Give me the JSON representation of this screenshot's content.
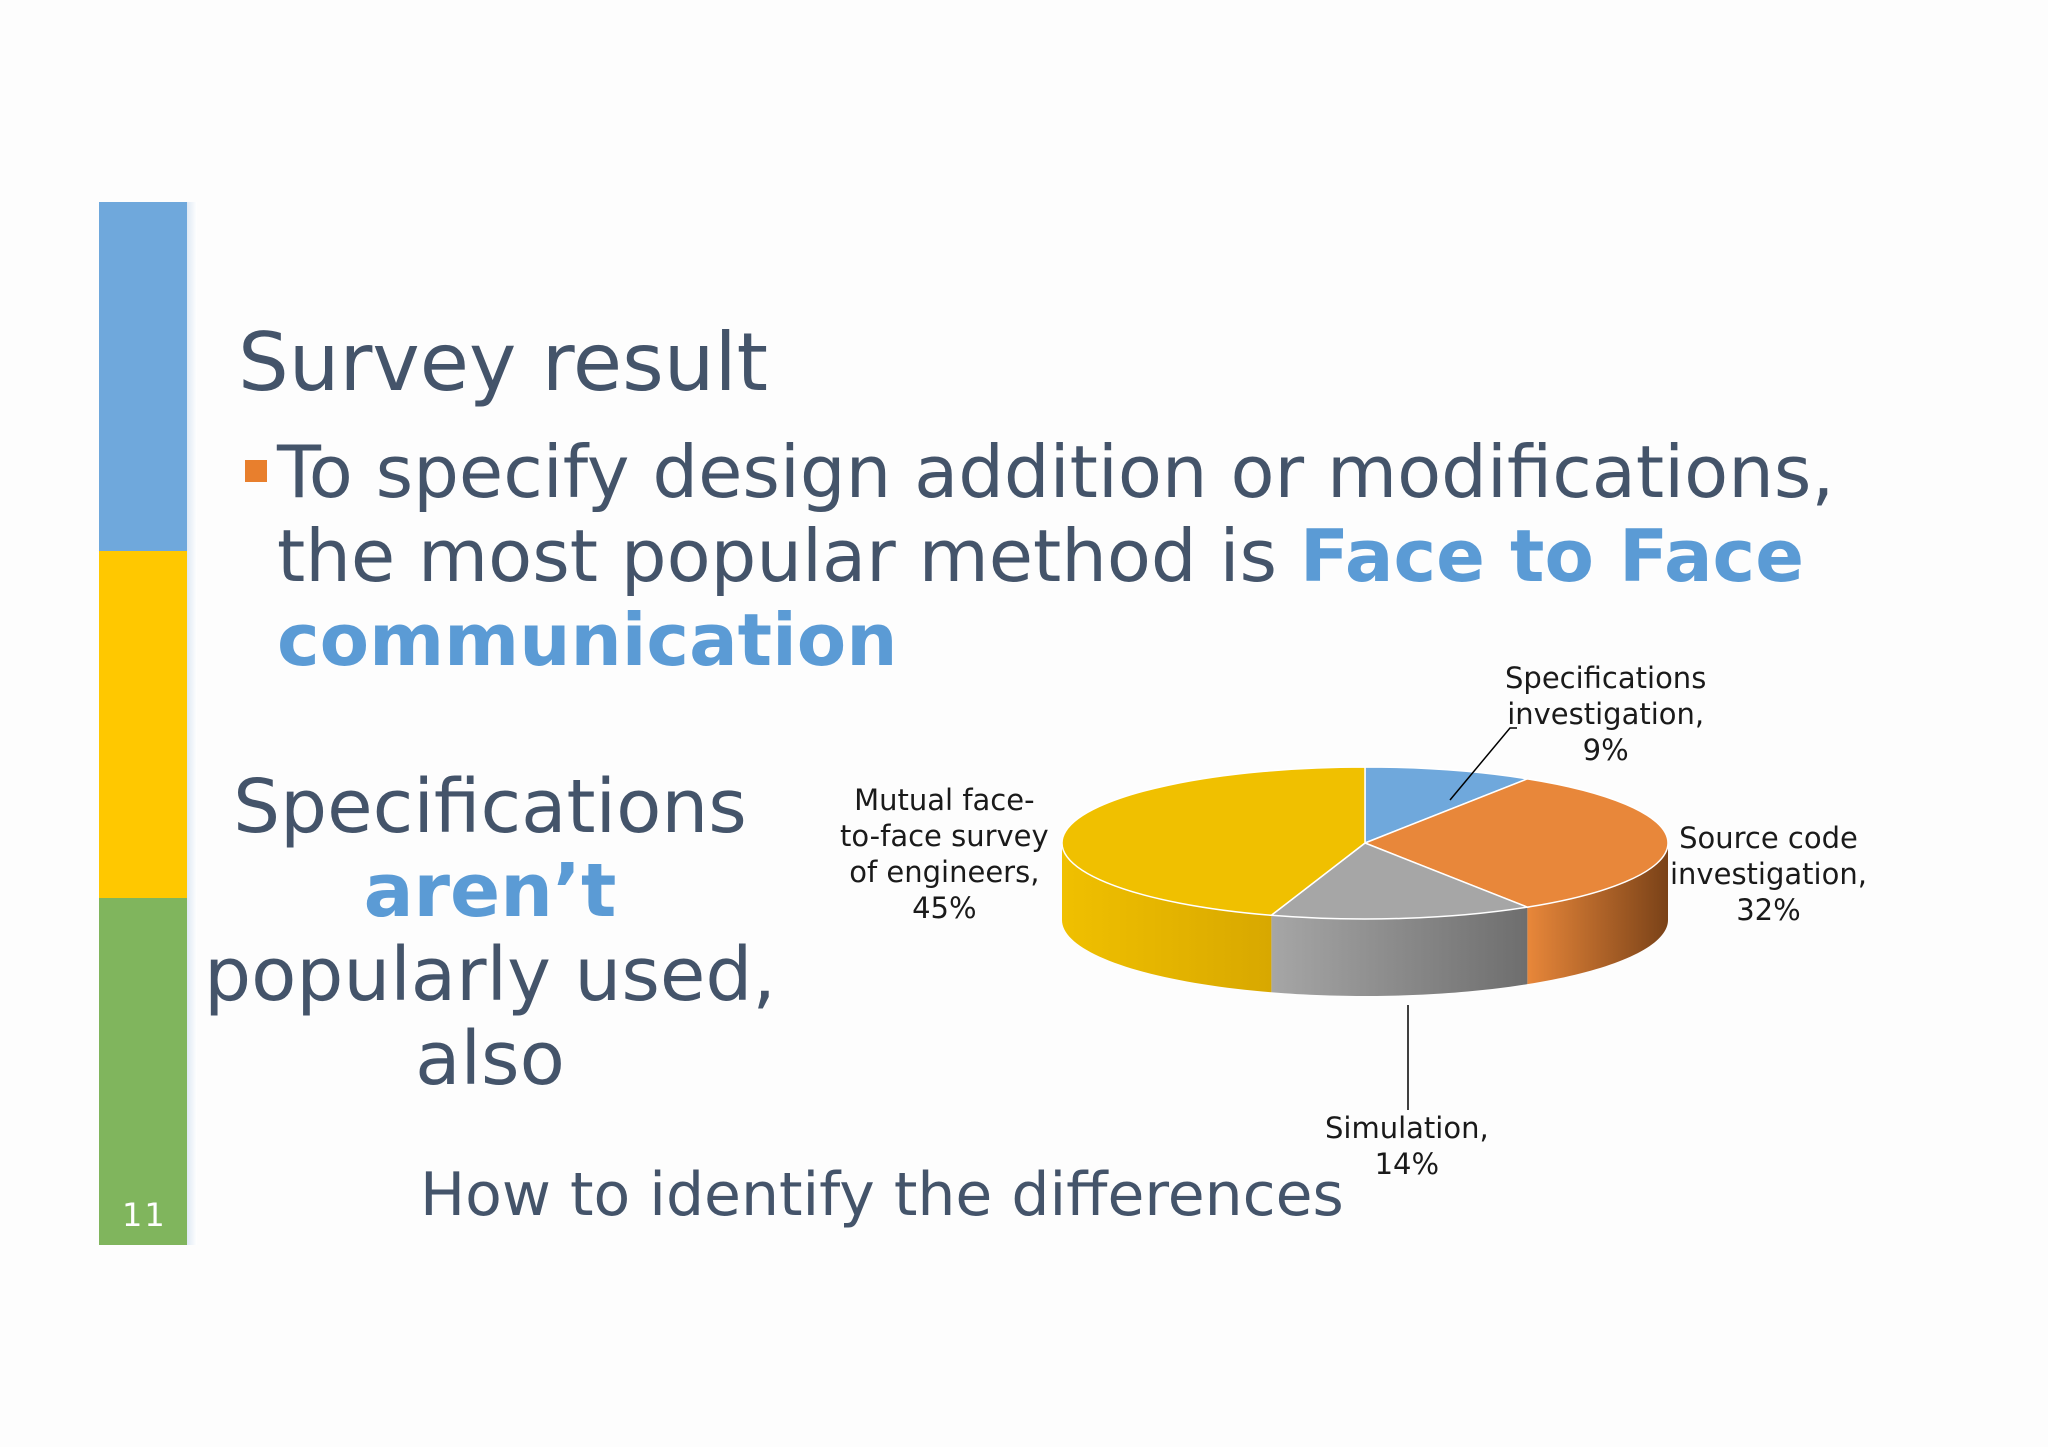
{
  "slide": {
    "number": "11",
    "title": "Survey result",
    "bullet": {
      "text_before": "To specify design addition or modifications, the most popular method is ",
      "emphasis": "Face to Face communication"
    },
    "left_note": {
      "line1": "Specifications",
      "emphasis": "aren’t",
      "line3": "popularly used,",
      "line4": "also"
    },
    "bottom_caption": "How to identify the differences"
  },
  "chart_data": {
    "type": "pie",
    "style": "3d",
    "slices": [
      {
        "label": "Specifications investigation",
        "value": 9,
        "display": "9%",
        "color": "#6fa8dc",
        "side": "#4a7fb0",
        "label_lines": [
          "Specifications",
          "investigation,",
          "9%"
        ]
      },
      {
        "label": "Source code investigation",
        "value": 32,
        "display": "32%",
        "color": "#e8873a",
        "side": "#7a4218",
        "label_lines": [
          "Source code",
          "investigation,",
          "32%"
        ]
      },
      {
        "label": "Simulation",
        "value": 14,
        "display": "14%",
        "color": "#a6a6a6",
        "side": "#6e6e6e",
        "label_lines": [
          "Simulation,",
          "14%"
        ]
      },
      {
        "label": "Mutual face-to-face survey of engineers",
        "value": 45,
        "display": "45%",
        "color": "#f0c000",
        "side": "#d8a800",
        "label_lines": [
          "Mutual face-",
          "to-face survey",
          "of engineers,",
          "45%"
        ]
      }
    ]
  }
}
